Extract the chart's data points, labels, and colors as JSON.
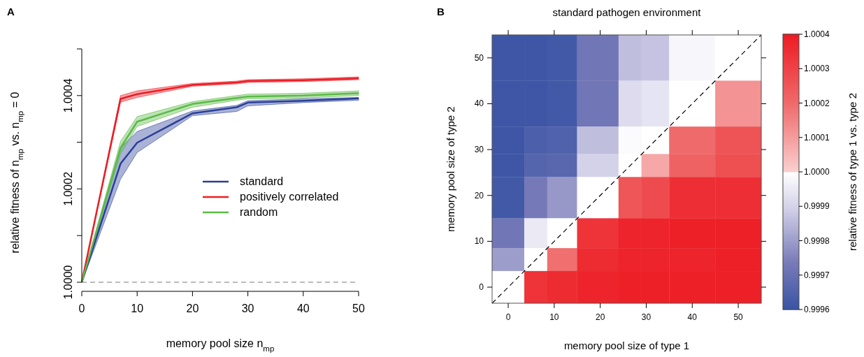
{
  "chart_data": [
    {
      "type": "line",
      "annotations": [
        "A"
      ],
      "xlabel": "memory pool size n$_{mp}$",
      "ylabel": "relative fitness of n$_{mp}$ vs. n$_{mp}$ = 0",
      "x": [
        0,
        7,
        10,
        20,
        28,
        30,
        40,
        50
      ],
      "xlim": [
        0,
        50
      ],
      "xticks": [
        0,
        10,
        20,
        30,
        40,
        50
      ],
      "ylim": [
        1.0,
        1.0005
      ],
      "yticks": [
        {
          "value": 1.0,
          "label": "1.0000"
        },
        {
          "value": 1.0001,
          "label": null
        },
        {
          "value": 1.0002,
          "label": "1.0002"
        },
        {
          "value": 1.0003,
          "label": null
        },
        {
          "value": 1.0004,
          "label": "1.0004"
        },
        {
          "value": 1.0005,
          "label": null
        }
      ],
      "legend": "right",
      "line_style": "solid",
      "marker": "none",
      "grid": false,
      "ref_lines": [
        {
          "axis": "y",
          "value": 1.0,
          "color": "#bbbbbb",
          "line_style": "dashed"
        }
      ],
      "series": [
        {
          "name": "standard",
          "color": "#2a3f98",
          "values": [
            1.0,
            1.000254,
            1.000299,
            1.000362,
            1.000375,
            1.000385,
            1.000389,
            1.000394
          ],
          "lower": [
            1.0,
            1.000221,
            1.000278,
            1.000357,
            1.000366,
            1.000378,
            1.000385,
            1.00039
          ],
          "upper": [
            1.0,
            1.000288,
            1.000323,
            1.000367,
            1.000379,
            1.000389,
            1.000393,
            1.000396
          ]
        },
        {
          "name": "positively correlated",
          "color": "#ed1c24",
          "values": [
            1.0,
            1.000393,
            1.000403,
            1.000423,
            1.000428,
            1.000431,
            1.000433,
            1.000437
          ],
          "lower": [
            1.0,
            1.000386,
            1.000396,
            1.00042,
            1.000425,
            1.000428,
            1.00043,
            1.000434
          ],
          "upper": [
            1.0,
            1.0004,
            1.00041,
            1.000426,
            1.000431,
            1.000434,
            1.000436,
            1.00044
          ]
        },
        {
          "name": "random",
          "color": "#5bb947",
          "values": [
            1.0,
            1.000288,
            1.000344,
            1.000382,
            1.000395,
            1.000398,
            1.0004,
            1.000405
          ],
          "lower": [
            1.0,
            1.000275,
            1.000334,
            1.000375,
            1.00039,
            1.000393,
            1.000395,
            1.0004
          ],
          "upper": [
            1.0,
            1.000302,
            1.000355,
            1.000387,
            1.0004,
            1.000403,
            1.000405,
            1.00041
          ]
        }
      ]
    },
    {
      "type": "heatmap",
      "annotations": [
        "B"
      ],
      "title": "standard pathogen environment",
      "xlabel": "memory pool size of type 1",
      "ylabel": "memory pool size of type 2",
      "clabel": "relative fitness of type 1 vs. type 2",
      "x": [
        0,
        7,
        10,
        20,
        28,
        30,
        40,
        50
      ],
      "y": [
        50,
        40,
        30,
        28,
        20,
        10,
        7,
        0
      ],
      "xlim": [
        -3.5,
        55
      ],
      "ylim": [
        -3.5,
        55
      ],
      "xticks": [
        0,
        10,
        20,
        30,
        40,
        50
      ],
      "yticks": [
        0,
        10,
        20,
        30,
        40,
        50
      ],
      "clim": [
        0.9996,
        1.0004
      ],
      "cticks": [
        {
          "value": 0.9996,
          "label": "0.9996"
        },
        {
          "value": 0.9997,
          "label": "0.9997"
        },
        {
          "value": 0.9998,
          "label": "0.9998"
        },
        {
          "value": 0.9999,
          "label": "0.9999"
        },
        {
          "value": 1.0,
          "label": "1.0000"
        },
        {
          "value": 1.0001,
          "label": "1.0001"
        },
        {
          "value": 1.0002,
          "label": "1.0002"
        },
        {
          "value": 1.0003,
          "label": "1.0003"
        },
        {
          "value": 1.0004,
          "label": "1.0004"
        }
      ],
      "cells": [
        [
          0.99961,
          0.99961,
          0.99962,
          0.99972,
          0.99986,
          0.99987,
          0.99998,
          1.0
        ],
        [
          0.99961,
          0.99961,
          0.99962,
          0.99972,
          0.99992,
          0.99994,
          1.0,
          1.00012
        ],
        [
          0.99961,
          0.99964,
          0.99965,
          0.99986,
          0.99999,
          1.0,
          1.0002,
          1.00026
        ],
        [
          0.99961,
          0.99966,
          0.99967,
          0.9999,
          1.0,
          1.00008,
          1.00022,
          1.00027
        ],
        [
          0.99962,
          0.99973,
          0.99979,
          1.0,
          1.00025,
          1.00028,
          1.00035,
          1.00035
        ],
        [
          0.99972,
          0.99995,
          1.0,
          1.00034,
          1.00038,
          1.00038,
          1.00039,
          1.00039
        ],
        [
          0.9998,
          1.0,
          1.00019,
          1.00036,
          1.00038,
          1.00038,
          1.00038,
          1.00039
        ],
        [
          1.0,
          1.00034,
          1.00036,
          1.00038,
          1.00039,
          1.00039,
          1.00039,
          1.00039
        ]
      ],
      "series": [
        {
          "type": "line",
          "x": [
            -3.5,
            55
          ],
          "values": [
            -3.5,
            55
          ],
          "color": "#000000",
          "line_style": "dashed"
        }
      ]
    }
  ]
}
